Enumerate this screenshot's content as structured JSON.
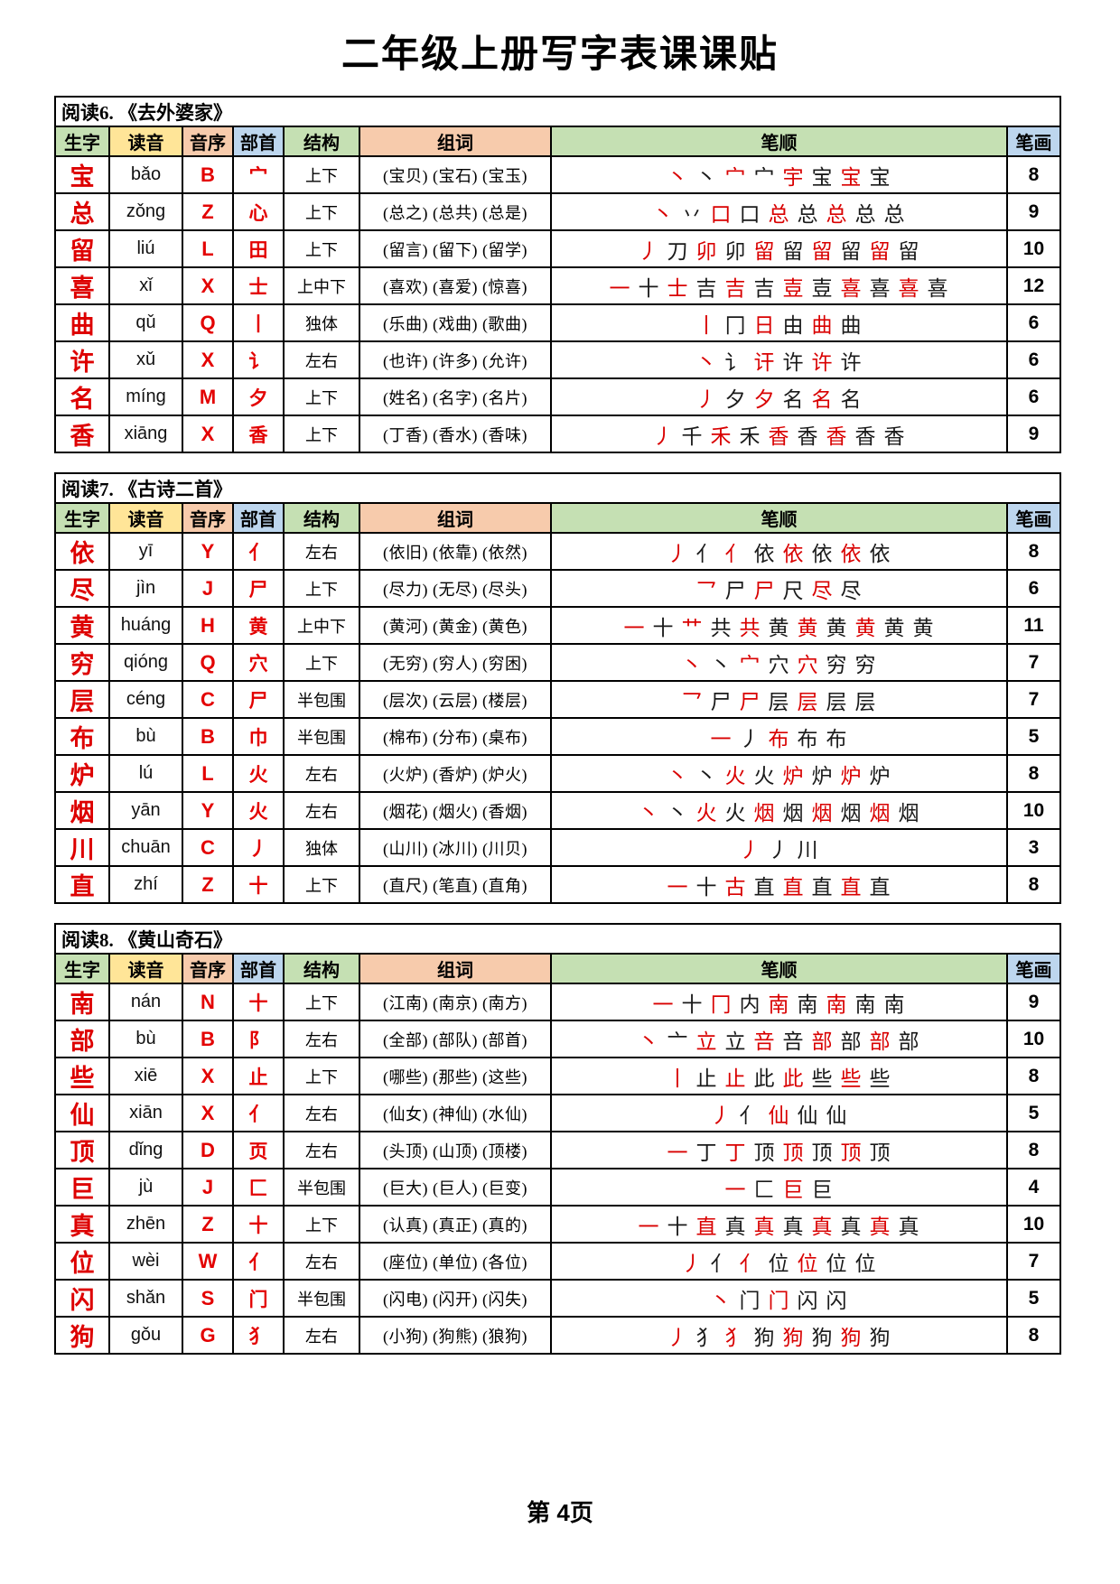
{
  "page": {
    "title": "二年级上册写字表课课贴",
    "footer": "第  4页"
  },
  "colors": {
    "green": "#c5e0b3",
    "yellow": "#ffe598",
    "peach": "#f7cbac",
    "blue": "#bdd6ee",
    "hanzi_red": "#dd0000",
    "stroke_red": "#d90000",
    "ink": "#000000"
  },
  "columns": [
    {
      "key": "hanzi",
      "label": "生字",
      "color": "#c5e0b3"
    },
    {
      "key": "pinyin",
      "label": "读音",
      "color": "#ffe598"
    },
    {
      "key": "initial",
      "label": "音序",
      "color": "#f7cbac"
    },
    {
      "key": "radical",
      "label": "部首",
      "color": "#bdd6ee"
    },
    {
      "key": "structure",
      "label": "结构",
      "color": "#c5e0b3"
    },
    {
      "key": "words",
      "label": "组词",
      "color": "#f7cbac"
    },
    {
      "key": "strokes",
      "label": "笔顺",
      "color": "#c5e0b3"
    },
    {
      "key": "count",
      "label": "笔画",
      "color": "#bdd6ee"
    }
  ],
  "sections": [
    {
      "title": "阅读6. 《去外婆家》",
      "rows": [
        {
          "hanzi": "宝",
          "pinyin": "bǎo",
          "initial": "B",
          "radical": "宀",
          "structure": "上下",
          "words": "(宝贝) (宝石) (宝玉)",
          "stroke_steps": [
            "丶",
            "丶",
            "宀",
            "宀",
            "宇",
            "宝",
            "宝",
            "宝"
          ],
          "count": "8"
        },
        {
          "hanzi": "总",
          "pinyin": "zǒng",
          "initial": "Z",
          "radical": "心",
          "structure": "上下",
          "words": "(总之) (总共) (总是)",
          "stroke_steps": [
            "丶",
            "丷",
            "口",
            "口",
            "总",
            "总",
            "总",
            "总",
            "总"
          ],
          "count": "9"
        },
        {
          "hanzi": "留",
          "pinyin": "liú",
          "initial": "L",
          "radical": "田",
          "structure": "上下",
          "words": "(留言) (留下) (留学)",
          "stroke_steps": [
            "丿",
            "刀",
            "卯",
            "卯",
            "留",
            "留",
            "留",
            "留",
            "留",
            "留"
          ],
          "count": "10"
        },
        {
          "hanzi": "喜",
          "pinyin": "xǐ",
          "initial": "X",
          "radical": "士",
          "structure": "上中下",
          "words": "(喜欢) (喜爱) (惊喜)",
          "stroke_steps": [
            "一",
            "十",
            "士",
            "吉",
            "吉",
            "吉",
            "壴",
            "壴",
            "喜",
            "喜",
            "喜",
            "喜"
          ],
          "count": "12"
        },
        {
          "hanzi": "曲",
          "pinyin": "qǔ",
          "initial": "Q",
          "radical": "丨",
          "structure": "独体",
          "words": "(乐曲) (戏曲) (歌曲)",
          "stroke_steps": [
            "丨",
            "冂",
            "日",
            "由",
            "曲",
            "曲"
          ],
          "count": "6"
        },
        {
          "hanzi": "许",
          "pinyin": "xǔ",
          "initial": "X",
          "radical": "讠",
          "structure": "左右",
          "words": "(也许) (许多) (允许)",
          "stroke_steps": [
            "丶",
            "讠",
            "讦",
            "许",
            "许",
            "许"
          ],
          "count": "6"
        },
        {
          "hanzi": "名",
          "pinyin": "míng",
          "initial": "M",
          "radical": "夕",
          "structure": "上下",
          "words": "(姓名) (名字) (名片)",
          "stroke_steps": [
            "丿",
            "夕",
            "夕",
            "名",
            "名",
            "名"
          ],
          "count": "6"
        },
        {
          "hanzi": "香",
          "pinyin": "xiāng",
          "initial": "X",
          "radical": "香",
          "structure": "上下",
          "words": "(丁香) (香水) (香味)",
          "stroke_steps": [
            "丿",
            "千",
            "禾",
            "禾",
            "香",
            "香",
            "香",
            "香",
            "香"
          ],
          "count": "9"
        }
      ]
    },
    {
      "title": "阅读7. 《古诗二首》",
      "rows": [
        {
          "hanzi": "依",
          "pinyin": "yī",
          "initial": "Y",
          "radical": "亻",
          "structure": "左右",
          "words": "(依旧) (依靠) (依然)",
          "stroke_steps": [
            "丿",
            "亻",
            "亻",
            "依",
            "依",
            "依",
            "依",
            "依"
          ],
          "count": "8"
        },
        {
          "hanzi": "尽",
          "pinyin": "jìn",
          "initial": "J",
          "radical": "尸",
          "structure": "上下",
          "words": "(尽力) (无尽) (尽头)",
          "stroke_steps": [
            "乛",
            "尸",
            "尸",
            "尺",
            "尽",
            "尽"
          ],
          "count": "6"
        },
        {
          "hanzi": "黄",
          "pinyin": "huáng",
          "initial": "H",
          "radical": "黄",
          "structure": "上中下",
          "words": "(黄河) (黄金) (黄色)",
          "stroke_steps": [
            "一",
            "十",
            "艹",
            "共",
            "共",
            "黄",
            "黄",
            "黄",
            "黄",
            "黄",
            "黄"
          ],
          "count": "11"
        },
        {
          "hanzi": "穷",
          "pinyin": "qióng",
          "initial": "Q",
          "radical": "穴",
          "structure": "上下",
          "words": "(无穷) (穷人) (穷困)",
          "stroke_steps": [
            "丶",
            "丶",
            "宀",
            "穴",
            "穴",
            "穷",
            "穷"
          ],
          "count": "7"
        },
        {
          "hanzi": "层",
          "pinyin": "céng",
          "initial": "C",
          "radical": "尸",
          "structure": "半包围",
          "words": "(层次) (云层) (楼层)",
          "stroke_steps": [
            "乛",
            "尸",
            "尸",
            "层",
            "层",
            "层",
            "层"
          ],
          "count": "7"
        },
        {
          "hanzi": "布",
          "pinyin": "bù",
          "initial": "B",
          "radical": "巾",
          "structure": "半包围",
          "words": "(棉布) (分布) (桌布)",
          "stroke_steps": [
            "一",
            "丿",
            "布",
            "布",
            "布"
          ],
          "count": "5"
        },
        {
          "hanzi": "炉",
          "pinyin": "lú",
          "initial": "L",
          "radical": "火",
          "structure": "左右",
          "words": "(火炉) (香炉) (炉火)",
          "stroke_steps": [
            "丶",
            "丶",
            "火",
            "火",
            "炉",
            "炉",
            "炉",
            "炉"
          ],
          "count": "8"
        },
        {
          "hanzi": "烟",
          "pinyin": "yān",
          "initial": "Y",
          "radical": "火",
          "structure": "左右",
          "words": "(烟花) (烟火) (香烟)",
          "stroke_steps": [
            "丶",
            "丶",
            "火",
            "火",
            "烟",
            "烟",
            "烟",
            "烟",
            "烟",
            "烟"
          ],
          "count": "10"
        },
        {
          "hanzi": "川",
          "pinyin": "chuān",
          "initial": "C",
          "radical": "丿",
          "structure": "独体",
          "words": "(山川) (冰川) (川贝)",
          "stroke_steps": [
            "丿",
            "丿",
            "川"
          ],
          "count": "3"
        },
        {
          "hanzi": "直",
          "pinyin": "zhí",
          "initial": "Z",
          "radical": "十",
          "structure": "上下",
          "words": "(直尺) (笔直) (直角)",
          "stroke_steps": [
            "一",
            "十",
            "古",
            "直",
            "直",
            "直",
            "直",
            "直"
          ],
          "count": "8"
        }
      ]
    },
    {
      "title": "阅读8. 《黄山奇石》",
      "rows": [
        {
          "hanzi": "南",
          "pinyin": "nán",
          "initial": "N",
          "radical": "十",
          "structure": "上下",
          "words": "(江南) (南京) (南方)",
          "stroke_steps": [
            "一",
            "十",
            "冂",
            "内",
            "南",
            "南",
            "南",
            "南",
            "南"
          ],
          "count": "9"
        },
        {
          "hanzi": "部",
          "pinyin": "bù",
          "initial": "B",
          "radical": "阝",
          "structure": "左右",
          "words": "(全部) (部队) (部首)",
          "stroke_steps": [
            "丶",
            "亠",
            "立",
            "立",
            "咅",
            "咅",
            "部",
            "部",
            "部",
            "部"
          ],
          "count": "10"
        },
        {
          "hanzi": "些",
          "pinyin": "xiē",
          "initial": "X",
          "radical": "止",
          "structure": "上下",
          "words": "(哪些) (那些) (这些)",
          "stroke_steps": [
            "丨",
            "止",
            "止",
            "此",
            "此",
            "些",
            "些",
            "些"
          ],
          "count": "8"
        },
        {
          "hanzi": "仙",
          "pinyin": "xiān",
          "initial": "X",
          "radical": "亻",
          "structure": "左右",
          "words": "(仙女) (神仙) (水仙)",
          "stroke_steps": [
            "丿",
            "亻",
            "仙",
            "仙",
            "仙"
          ],
          "count": "5"
        },
        {
          "hanzi": "顶",
          "pinyin": "dǐng",
          "initial": "D",
          "radical": "页",
          "structure": "左右",
          "words": "(头顶) (山顶) (顶楼)",
          "stroke_steps": [
            "一",
            "丁",
            "丁",
            "顶",
            "顶",
            "顶",
            "顶",
            "顶"
          ],
          "count": "8"
        },
        {
          "hanzi": "巨",
          "pinyin": "jù",
          "initial": "J",
          "radical": "匚",
          "structure": "半包围",
          "words": "(巨大) (巨人) (巨变)",
          "stroke_steps": [
            "一",
            "匚",
            "巨",
            "巨"
          ],
          "count": "4"
        },
        {
          "hanzi": "真",
          "pinyin": "zhēn",
          "initial": "Z",
          "radical": "十",
          "structure": "上下",
          "words": "(认真) (真正) (真的)",
          "stroke_steps": [
            "一",
            "十",
            "直",
            "真",
            "真",
            "真",
            "真",
            "真",
            "真",
            "真"
          ],
          "count": "10"
        },
        {
          "hanzi": "位",
          "pinyin": "wèi",
          "initial": "W",
          "radical": "亻",
          "structure": "左右",
          "words": "(座位) (单位) (各位)",
          "stroke_steps": [
            "丿",
            "亻",
            "亻",
            "位",
            "位",
            "位",
            "位"
          ],
          "count": "7"
        },
        {
          "hanzi": "闪",
          "pinyin": "shǎn",
          "initial": "S",
          "radical": "门",
          "structure": "半包围",
          "words": "(闪电) (闪开) (闪失)",
          "stroke_steps": [
            "丶",
            "门",
            "门",
            "闪",
            "闪"
          ],
          "count": "5"
        },
        {
          "hanzi": "狗",
          "pinyin": "gǒu",
          "initial": "G",
          "radical": "犭",
          "structure": "左右",
          "words": "(小狗) (狗熊) (狼狗)",
          "stroke_steps": [
            "丿",
            "犭",
            "犭",
            "狗",
            "狗",
            "狗",
            "狗",
            "狗"
          ],
          "count": "8"
        }
      ]
    }
  ]
}
